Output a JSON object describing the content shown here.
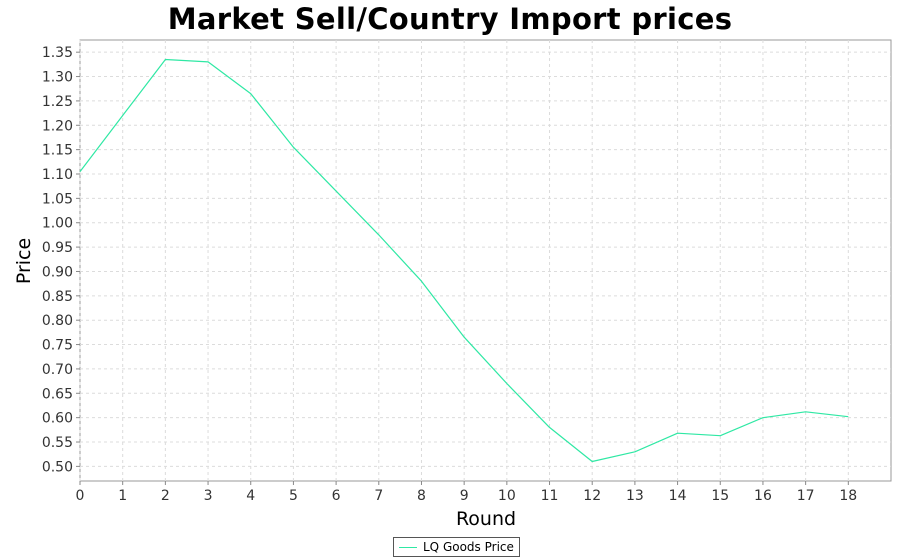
{
  "chart_data": {
    "type": "line",
    "title": "Market Sell/Country Import prices",
    "xlabel": "Round",
    "ylabel": "Price",
    "x": [
      0,
      1,
      2,
      3,
      4,
      5,
      6,
      7,
      8,
      9,
      10,
      11,
      12,
      13,
      14,
      15,
      16,
      17,
      18
    ],
    "xlim": [
      0,
      19
    ],
    "ylim": [
      0.47,
      1.375
    ],
    "xticks": [
      "0",
      "1",
      "2",
      "3",
      "4",
      "5",
      "6",
      "7",
      "8",
      "9",
      "10",
      "11",
      "12",
      "13",
      "14",
      "15",
      "16",
      "17",
      "18"
    ],
    "yticks": [
      "0.50",
      "0.55",
      "0.60",
      "0.65",
      "0.70",
      "0.75",
      "0.80",
      "0.85",
      "0.90",
      "0.95",
      "1.00",
      "1.05",
      "1.10",
      "1.15",
      "1.20",
      "1.25",
      "1.30",
      "1.35"
    ],
    "grid": true,
    "legend_position": "bottom-center",
    "series": [
      {
        "name": "LQ Goods Price",
        "color": "#2fe8a4",
        "values": [
          1.105,
          1.22,
          1.335,
          1.33,
          1.265,
          1.155,
          1.065,
          0.975,
          0.88,
          0.765,
          0.67,
          0.58,
          0.51,
          0.53,
          0.568,
          0.563,
          0.6,
          0.612,
          0.602
        ]
      }
    ]
  }
}
